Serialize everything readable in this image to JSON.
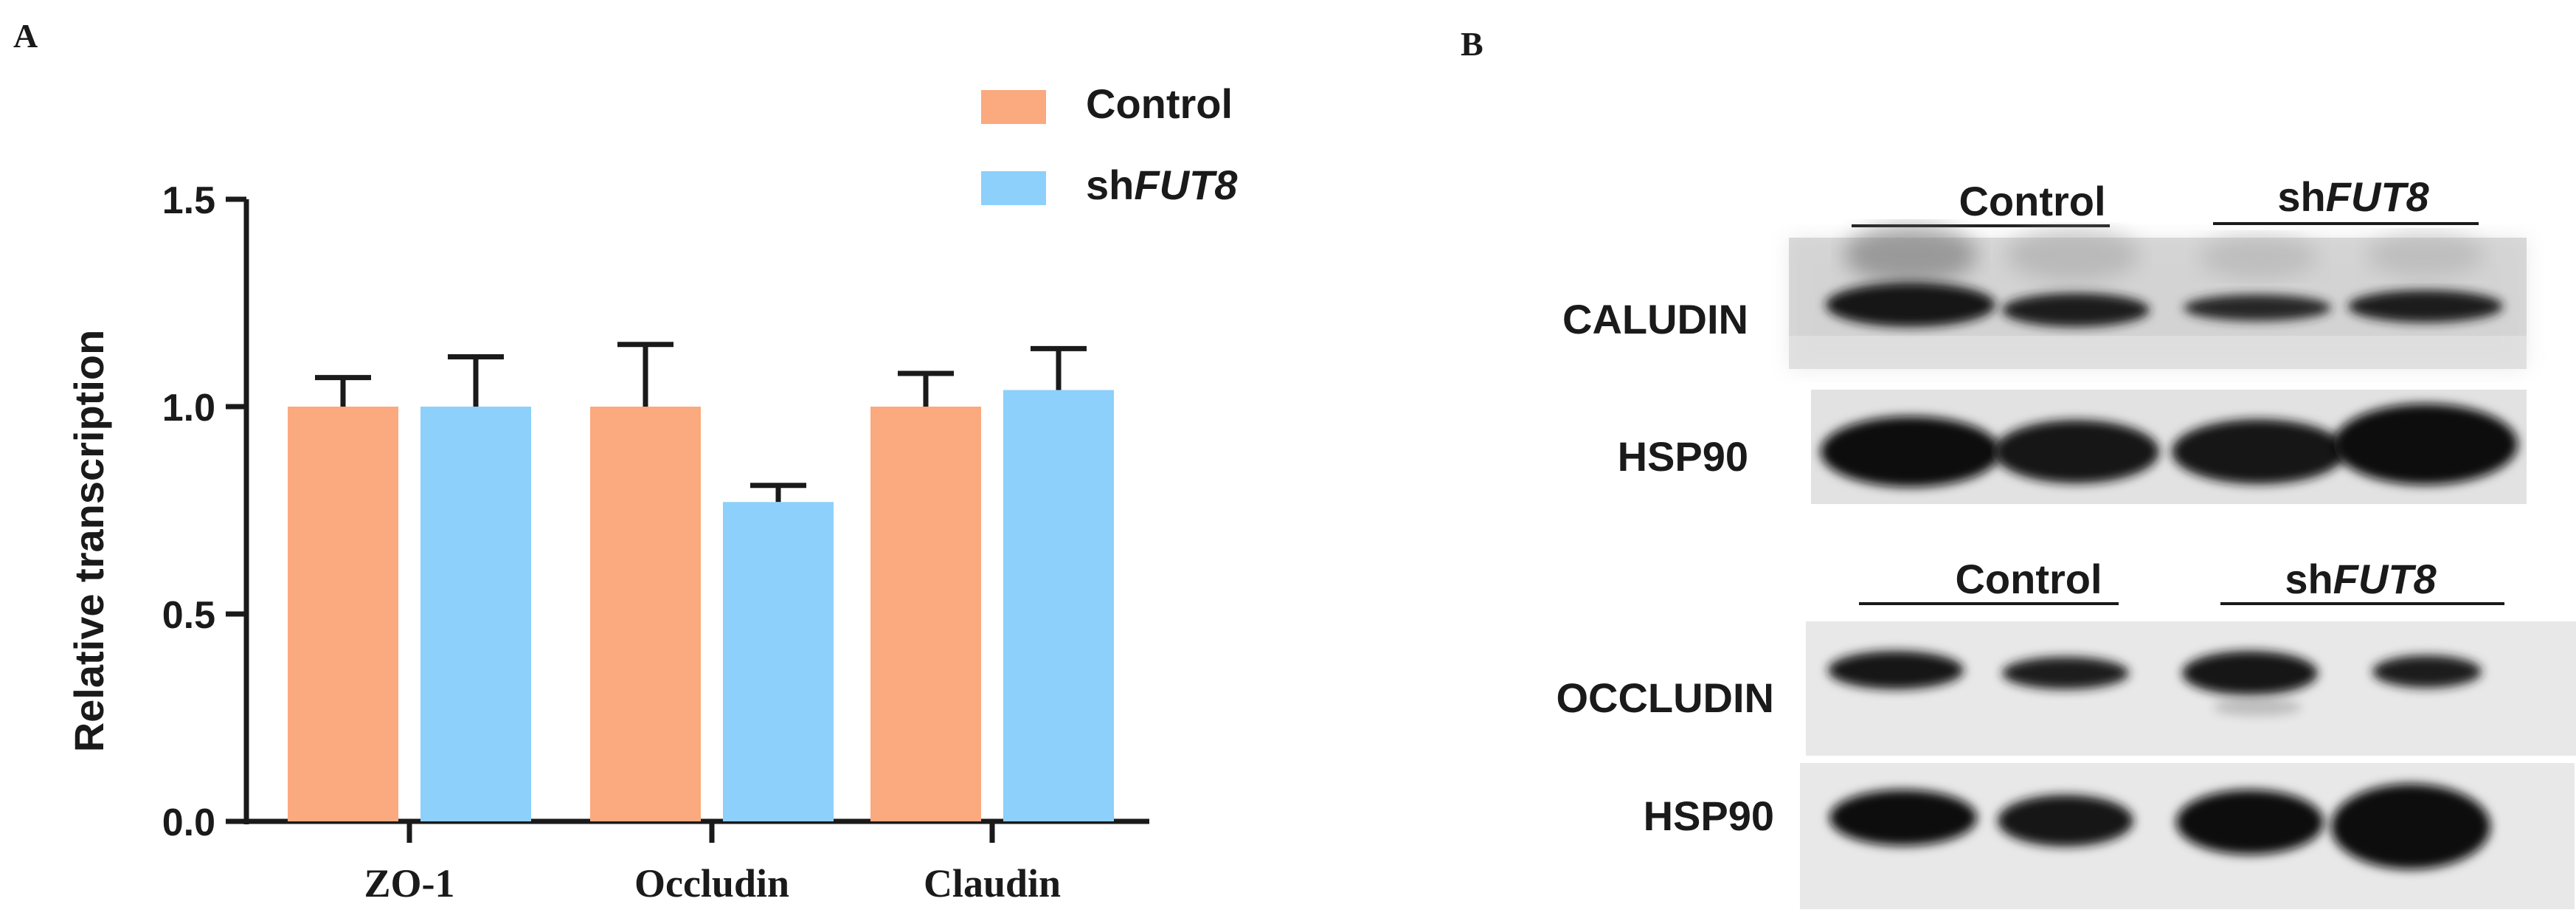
{
  "panel_a": {
    "label": "A",
    "chart_data": {
      "type": "bar",
      "categories": [
        "ZO-1",
        "Occludin",
        "Claudin"
      ],
      "series": [
        {
          "name": "Control",
          "values": [
            1.0,
            1.0,
            1.0
          ],
          "errors": [
            0.07,
            0.15,
            0.08
          ],
          "color": "#FBA97E"
        },
        {
          "name": "shFUT8",
          "values": [
            1.0,
            0.77,
            1.04
          ],
          "errors": [
            0.12,
            0.04,
            0.1
          ],
          "color": "#8DD0FB"
        }
      ],
      "legend_labels": [
        {
          "prefix": "Control",
          "italic": ""
        },
        {
          "prefix": "sh",
          "italic": "FUT8"
        }
      ],
      "ylabel": "Relative transcription",
      "ylim": [
        0,
        1.5
      ],
      "yticks": [
        "0.0",
        "0.5",
        "1.0",
        "1.5"
      ],
      "grid": false,
      "legend_position": "top-right"
    }
  },
  "panel_b": {
    "label": "B",
    "blot1": {
      "group_labels": [
        {
          "prefix": "Control",
          "italic": ""
        },
        {
          "prefix": "sh",
          "italic": "FUT8"
        }
      ],
      "rows": [
        {
          "label": "CALUDIN",
          "intensities": [
            0.95,
            0.82,
            0.72,
            0.8
          ]
        },
        {
          "label": "HSP90",
          "intensities": [
            1.0,
            0.95,
            0.95,
            1.0
          ]
        }
      ]
    },
    "blot2": {
      "group_labels": [
        {
          "prefix": "Control",
          "italic": ""
        },
        {
          "prefix": "sh",
          "italic": "FUT8"
        }
      ],
      "rows": [
        {
          "label": "OCCLUDIN",
          "intensities": [
            0.9,
            0.82,
            0.9,
            0.78
          ]
        },
        {
          "label": "HSP90",
          "intensities": [
            0.95,
            0.92,
            0.98,
            1.0
          ]
        }
      ]
    }
  }
}
